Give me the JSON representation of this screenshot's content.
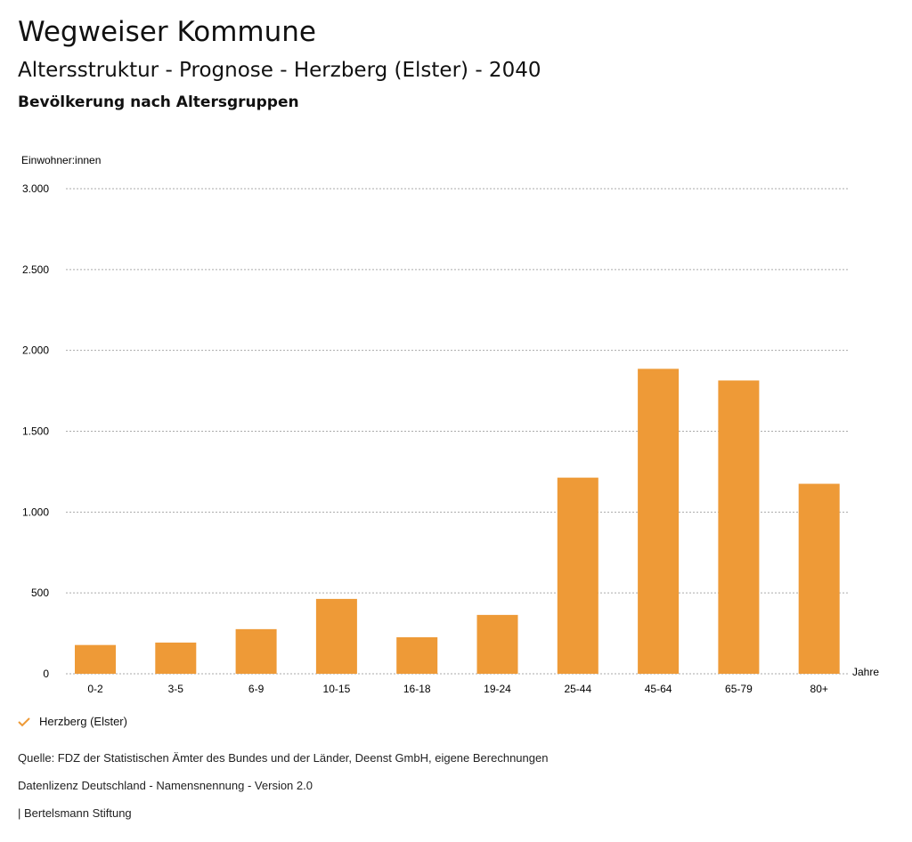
{
  "header": {
    "title": "Wegweiser Kommune",
    "subtitle": "Altersstruktur - Prognose - Herzberg (Elster) - 2040",
    "section": "Bevölkerung nach Altersgruppen"
  },
  "chart_data": {
    "type": "bar",
    "title": "Bevölkerung nach Altersgruppen",
    "ylabel": "Einwohner:innen",
    "xlabel": "Jahre",
    "ylim": [
      0,
      3000
    ],
    "yticks": [
      0,
      500,
      1000,
      1500,
      2000,
      2500,
      3000
    ],
    "ytick_labels": [
      "0",
      "500",
      "1.000",
      "1.500",
      "2.000",
      "2.500",
      "3.000"
    ],
    "categories": [
      "0-2",
      "3-5",
      "6-9",
      "10-15",
      "16-18",
      "19-24",
      "25-44",
      "45-64",
      "65-79",
      "80+"
    ],
    "series": [
      {
        "name": "Herzberg (Elster)",
        "values": [
          178,
          193,
          276,
          463,
          226,
          364,
          1213,
          1886,
          1814,
          1175
        ]
      }
    ],
    "grid": true,
    "legend": "bottom-left",
    "color": "#ee9a37"
  },
  "footer": {
    "source": "Quelle: FDZ der Statistischen Ämter des Bundes und der Länder, Deenst GmbH, eigene Berechnungen",
    "license": "Datenlizenz Deutschland - Namensnennung - Version 2.0",
    "credit": "| Bertelsmann Stiftung"
  }
}
